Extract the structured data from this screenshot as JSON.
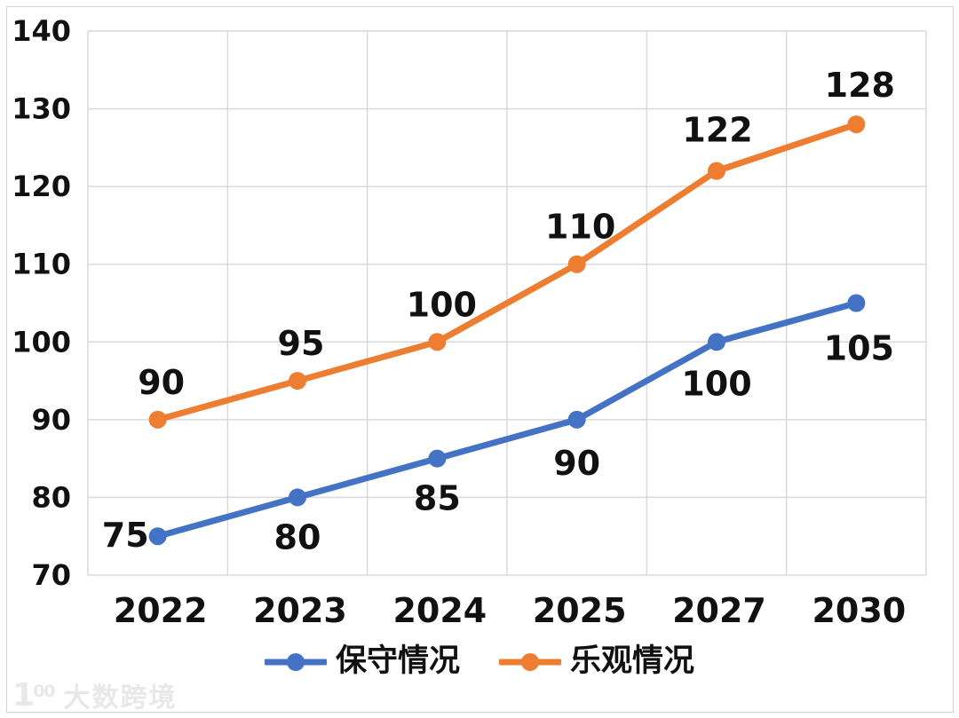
{
  "chart_data": {
    "type": "line",
    "categories": [
      "2022",
      "2023",
      "2024",
      "2025",
      "2027",
      "2030"
    ],
    "series": [
      {
        "name": "保守情况",
        "color": "#4472C4",
        "values": [
          75,
          80,
          85,
          90,
          100,
          105
        ],
        "label_anchors": [
          "end",
          "middle",
          "middle",
          "middle",
          "middle",
          "middle"
        ],
        "label_offsets": [
          [
            -10,
            12
          ],
          [
            0,
            58
          ],
          [
            0,
            58
          ],
          [
            0,
            62
          ],
          [
            0,
            60
          ],
          [
            3,
            64
          ]
        ]
      },
      {
        "name": "乐观情况",
        "color": "#ED7D31",
        "values": [
          90,
          95,
          100,
          110,
          122,
          128
        ],
        "label_anchors": [
          "middle",
          "middle",
          "middle",
          "middle",
          "middle",
          "middle"
        ],
        "label_offsets": [
          [
            4,
            -29
          ],
          [
            4,
            -29
          ],
          [
            5,
            -29
          ],
          [
            4,
            -29
          ],
          [
            1,
            -33
          ],
          [
            4,
            -31
          ]
        ]
      }
    ],
    "title": "",
    "xlabel": "",
    "ylabel": "",
    "ylim": [
      70,
      140
    ],
    "yticks": [
      70,
      80,
      90,
      100,
      110,
      120,
      130,
      140
    ],
    "grid": true,
    "gridline_color": "#d9d9d9",
    "legend_position": "bottom",
    "data_labels": true
  },
  "watermark": {
    "logo_number": "1",
    "logo_superscript": "00",
    "brand_text": "大数跨境"
  }
}
